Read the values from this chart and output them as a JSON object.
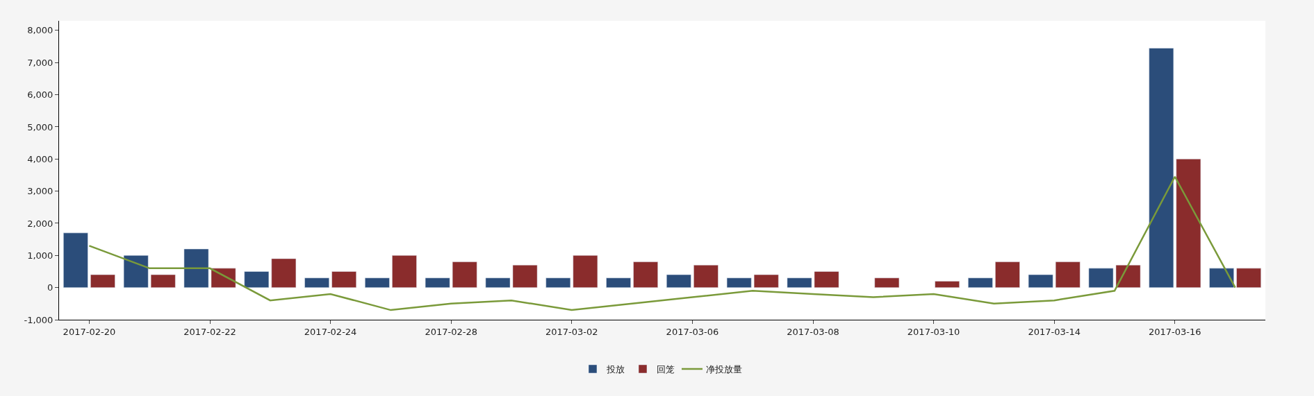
{
  "chart_data": {
    "type": "bar",
    "categories": [
      "2017-02-20",
      null,
      "2017-02-22",
      null,
      "2017-02-24",
      null,
      "2017-02-28",
      null,
      "2017-03-02",
      null,
      "2017-03-06",
      null,
      "2017-03-08",
      null,
      "2017-03-10",
      null,
      "2017-03-14",
      null,
      "2017-03-16",
      null
    ],
    "series": [
      {
        "name": "投放",
        "color": "#2b4d7a",
        "values": [
          1700,
          1000,
          1200,
          500,
          300,
          300,
          300,
          300,
          300,
          300,
          400,
          300,
          300,
          null,
          null,
          300,
          400,
          600,
          7450,
          600
        ]
      },
      {
        "name": "回笼",
        "color": "#8a2c2c",
        "values": [
          400,
          400,
          600,
          900,
          500,
          1000,
          800,
          700,
          1000,
          800,
          700,
          400,
          500,
          300,
          200,
          800,
          800,
          700,
          4000,
          600
        ]
      },
      {
        "name": "净投放量",
        "type": "line",
        "color": "#7a9a3a",
        "values": [
          1300,
          600,
          600,
          -400,
          -200,
          -700,
          -500,
          -400,
          -700,
          -500,
          -300,
          -100,
          -200,
          -300,
          -200,
          -500,
          -400,
          -100,
          3450,
          0
        ]
      }
    ],
    "ylim": [
      -1000,
      8300
    ],
    "yticks": [
      {
        "value": -1000,
        "label": "-1,000"
      },
      0,
      {
        "value": 1000,
        "label": "1,000"
      },
      {
        "value": 2000,
        "label": "2,000"
      },
      {
        "value": 3000,
        "label": "3,000"
      },
      {
        "value": 4000,
        "label": "4,000"
      },
      {
        "value": 5000,
        "label": "5,000"
      },
      {
        "value": 6000,
        "label": "6,000"
      },
      {
        "value": 7000,
        "label": "7,000"
      },
      {
        "value": 8000,
        "label": "8,000"
      }
    ],
    "legend": "bottom",
    "marker": "none",
    "line_style": "solid"
  }
}
